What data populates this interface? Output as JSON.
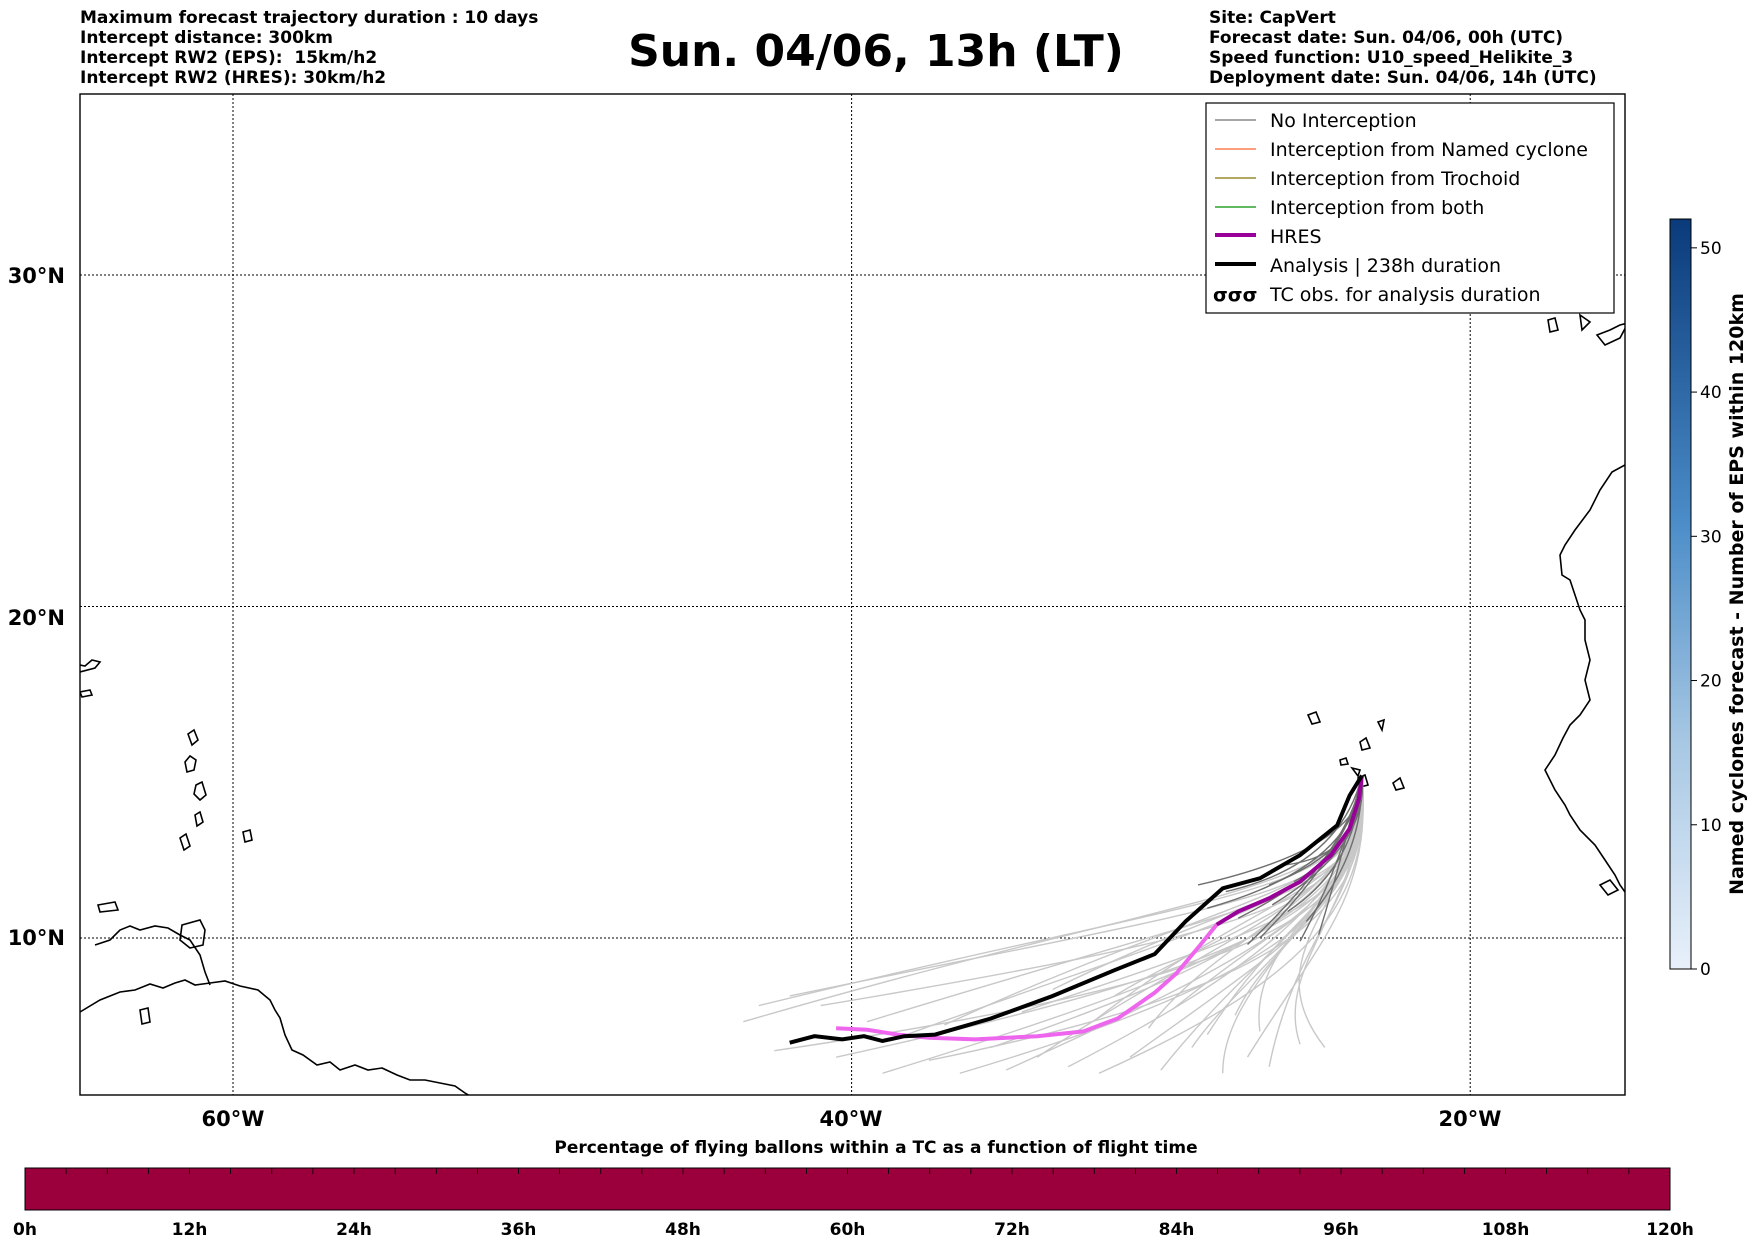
{
  "header_left": [
    "Maximum forecast trajectory duration : 10 days",
    "Intercept distance: 300km",
    "Intercept RW2 (EPS):  15km/h2",
    "Intercept RW2 (HRES): 30km/h2"
  ],
  "header_right": [
    "Site: CapVert",
    "Forecast date: Sun. 04/06, 00h (UTC)",
    "Speed function: U10_speed_Helikite_3",
    "Deployment date: Sun. 04/06, 14h (UTC)"
  ],
  "title": "Sun. 04/06, 13h (LT)",
  "map": {
    "lat_labels": [
      "30°N",
      "20°N",
      "10°N"
    ],
    "lon_labels": [
      "60°W",
      "40°W",
      "20°W"
    ],
    "grid": true,
    "extent": {
      "lon_min": -65,
      "lon_max": -15,
      "lat_min": 5.5,
      "lat_max": 35.5
    }
  },
  "legend": {
    "placement": "top-right",
    "items": [
      {
        "label": "No Interception",
        "color": "#888888",
        "style": "thin"
      },
      {
        "label": "Interception from Named cyclone",
        "color": "#ff7f50",
        "style": "thin"
      },
      {
        "label": "Interception from Trochoid",
        "color": "#9a8a30",
        "style": "thin"
      },
      {
        "label": "Interception from both",
        "color": "#2ca02c",
        "style": "thin"
      },
      {
        "label": "HRES",
        "color": "#990099",
        "style": "thick"
      },
      {
        "label": "Analysis | 238h duration",
        "color": "#000000",
        "style": "thick"
      },
      {
        "label": "TC obs. for analysis duration",
        "color": "#000000",
        "style": "marker"
      }
    ]
  },
  "colorbar_right": {
    "label": "Named cyclones forecast - Number of EPS within 120km",
    "ticks": [
      "50",
      "40",
      "30",
      "20",
      "10",
      "0"
    ],
    "min": 0,
    "max": 52,
    "color_low": "#e8f0fa",
    "color_high": "#0a3a7a"
  },
  "colorbar_bottom": {
    "caption": "Percentage of flying ballons within a TC as a function of flight time",
    "ticks": [
      "0h",
      "12h",
      "24h",
      "36h",
      "48h",
      "60h",
      "72h",
      "84h",
      "96h",
      "108h",
      "120h"
    ],
    "color": "#9c003c"
  },
  "trajectories": {
    "origin": {
      "lon": -23.5,
      "lat": 14.9
    },
    "analysis": [
      [
        -23.5,
        14.9
      ],
      [
        -23.9,
        14.3
      ],
      [
        -24.3,
        13.4
      ],
      [
        -25.5,
        12.5
      ],
      [
        -26.8,
        11.8
      ],
      [
        -28,
        11.5
      ],
      [
        -29.2,
        10.5
      ],
      [
        -30.2,
        9.5
      ],
      [
        -31.5,
        9.0
      ],
      [
        -33.5,
        8.2
      ],
      [
        -35.5,
        7.5
      ],
      [
        -37.3,
        7.0
      ],
      [
        -38.3,
        6.95
      ],
      [
        -39,
        6.8
      ],
      [
        -39.6,
        6.95
      ],
      [
        -40.3,
        6.85
      ],
      [
        -41.2,
        6.95
      ],
      [
        -42,
        6.75
      ]
    ],
    "hres_dark": [
      [
        -23.5,
        14.9
      ],
      [
        -23.6,
        14.2
      ],
      [
        -23.9,
        13.3
      ],
      [
        -24.5,
        12.5
      ],
      [
        -25.5,
        11.7
      ],
      [
        -26.5,
        11.2
      ],
      [
        -27.5,
        10.8
      ],
      [
        -28.2,
        10.4
      ]
    ],
    "hres_light": [
      [
        -28.2,
        10.4
      ],
      [
        -28.8,
        9.7
      ],
      [
        -29.5,
        8.9
      ],
      [
        -30.2,
        8.3
      ],
      [
        -31.4,
        7.5
      ],
      [
        -32.5,
        7.1
      ],
      [
        -34,
        6.95
      ],
      [
        -36,
        6.85
      ],
      [
        -37.5,
        6.9
      ],
      [
        -38.5,
        7.0
      ],
      [
        -39.5,
        7.15
      ],
      [
        -40.5,
        7.2
      ]
    ],
    "ensemble_dark_endpoints": [
      [
        -26.4,
        11.0
      ],
      [
        -27.5,
        10.6
      ],
      [
        -25.9,
        10.8
      ],
      [
        -26.8,
        10.0
      ],
      [
        -25.5,
        9.9
      ],
      [
        -27.9,
        11.4
      ],
      [
        -26.5,
        11.6
      ],
      [
        -25.3,
        10.5
      ],
      [
        -28.5,
        10.9
      ],
      [
        -27.2,
        9.8
      ],
      [
        -25.7,
        11.7
      ],
      [
        -24.9,
        10.1
      ],
      [
        -28.8,
        11.6
      ],
      [
        -26.0,
        12.2
      ]
    ],
    "ensemble_light_endpoints": [
      [
        -37.5,
        6.2
      ],
      [
        -36.5,
        5.8
      ],
      [
        -35,
        5.9
      ],
      [
        -34,
        6.3
      ],
      [
        -33,
        6.0
      ],
      [
        -32,
        5.8
      ],
      [
        -31,
        6.3
      ],
      [
        -30,
        5.9
      ],
      [
        -29,
        6.6
      ],
      [
        -28,
        5.8
      ],
      [
        -27.2,
        6.3
      ],
      [
        -26.5,
        6.0
      ],
      [
        -25.5,
        6.7
      ],
      [
        -24.7,
        6.6
      ],
      [
        -38.5,
        6.9
      ],
      [
        -39.5,
        7.4
      ],
      [
        -41,
        7.9
      ],
      [
        -42,
        8.2
      ],
      [
        -43,
        7.9
      ],
      [
        -43.5,
        7.4
      ],
      [
        -42.5,
        6.5
      ],
      [
        -40.5,
        6.3
      ],
      [
        -39,
        5.8
      ],
      [
        -37,
        7.3
      ],
      [
        -35.5,
        6.6
      ],
      [
        -34.5,
        7.7
      ],
      [
        -33.5,
        8.4
      ],
      [
        -32.2,
        7.4
      ],
      [
        -31.5,
        8.2
      ],
      [
        -30.4,
        7.2
      ],
      [
        -29.6,
        7.8
      ],
      [
        -28.5,
        7.0
      ],
      [
        -27.6,
        7.6
      ],
      [
        -26.8,
        7.1
      ]
    ]
  }
}
